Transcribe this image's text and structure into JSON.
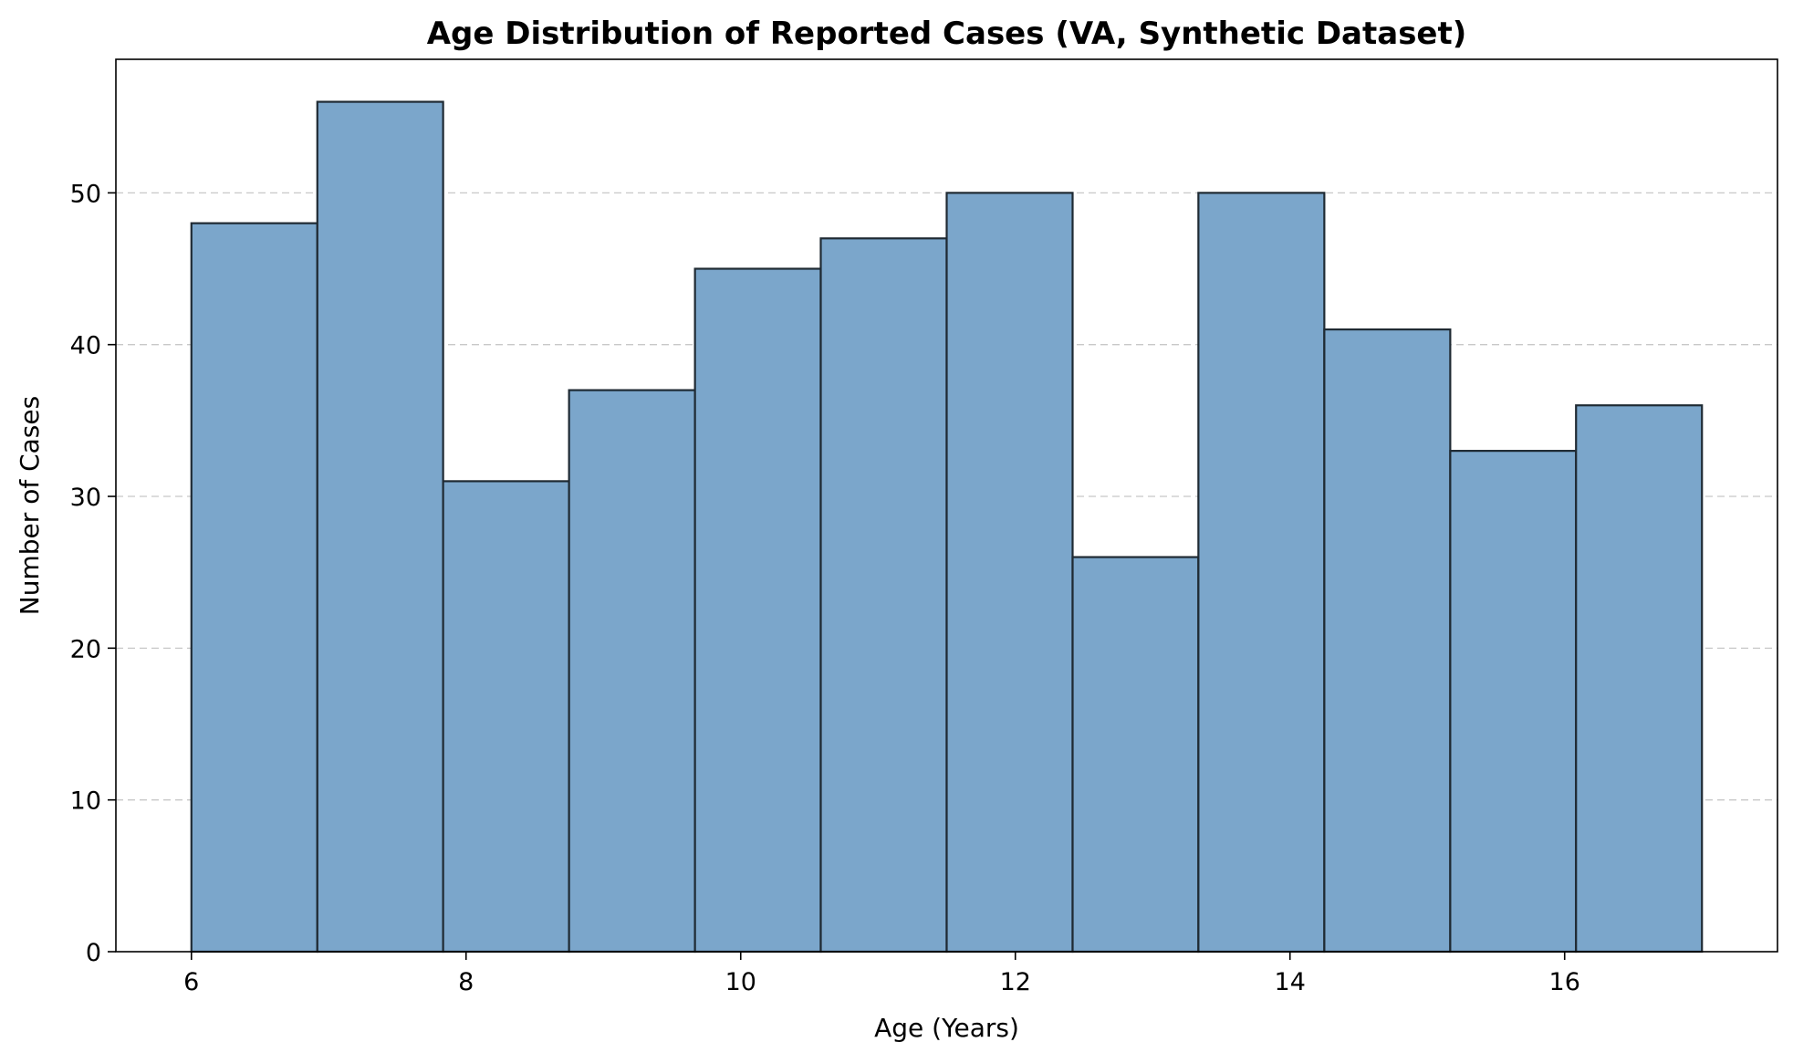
{
  "chart_data": {
    "type": "bar",
    "subtype": "histogram",
    "title": "Age Distribution of Reported Cases (VA, Synthetic Dataset)",
    "xlabel": "Age (Years)",
    "ylabel": "Number of Cases",
    "bins": {
      "edges": [
        6.0,
        6.917,
        7.833,
        8.75,
        9.667,
        10.583,
        11.5,
        12.417,
        13.333,
        14.25,
        15.167,
        16.083,
        17.0
      ],
      "values": [
        48,
        56,
        31,
        37,
        45,
        47,
        50,
        26,
        50,
        41,
        33,
        36
      ]
    },
    "xlim": [
      5.45,
      17.55
    ],
    "ylim": [
      0,
      58.8
    ],
    "xticks": [
      6,
      8,
      10,
      12,
      14,
      16
    ],
    "yticks": [
      0,
      10,
      20,
      30,
      40,
      50
    ],
    "grid": {
      "x": false,
      "y": true,
      "style": "dashed"
    },
    "legend": "none",
    "colors": {
      "bar_fill": "#7BA6CB",
      "bar_edge": "#1F2A33",
      "grid": "#C8C8C8",
      "axis": "#000000"
    }
  }
}
